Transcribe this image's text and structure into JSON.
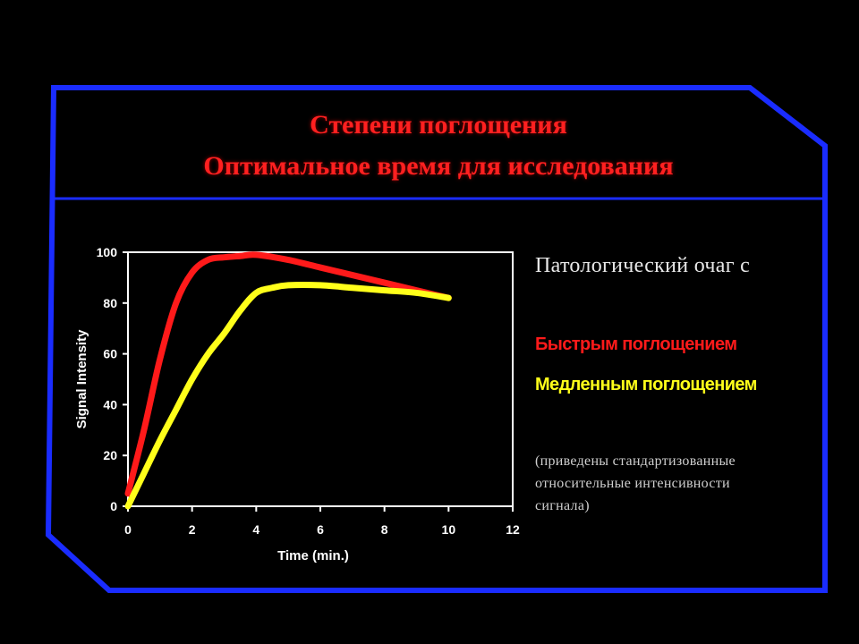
{
  "slide": {
    "title_line1": "Степени поглощения",
    "title_line2": "Оптимальное время для исследования",
    "title_color": "#ff2020",
    "frame_color": "#1a2cff"
  },
  "legend": {
    "heading": "Патологический очаг с",
    "fast_label": "Быстрым поглощением",
    "fast_color": "#ff1a1a",
    "slow_label": "Медленным поглощением",
    "slow_color": "#ffff1a"
  },
  "note": {
    "line1": "(приведены стандартизованные",
    "line2": "относительные интенсивности",
    "line3": "сигнала)"
  },
  "chart_data": {
    "type": "line",
    "xlabel": "Time (min.)",
    "ylabel": "Signal Intensity",
    "xlim": [
      0,
      12
    ],
    "ylim": [
      0,
      100
    ],
    "x_ticks": [
      0,
      2,
      4,
      6,
      8,
      10,
      12
    ],
    "y_ticks": [
      0,
      20,
      40,
      60,
      80,
      100
    ],
    "grid": false,
    "series": [
      {
        "color": "#ff1a1a",
        "x": [
          0,
          0.5,
          1,
          1.5,
          2,
          2.5,
          3,
          3.5,
          4,
          5,
          6,
          7,
          8,
          9,
          10
        ],
        "y": [
          5,
          30,
          58,
          80,
          92,
          97,
          98,
          98.5,
          99,
          97,
          94,
          91,
          88,
          85,
          82
        ]
      },
      {
        "color": "#ffff1a",
        "x": [
          0,
          0.5,
          1,
          1.5,
          2,
          2.5,
          3,
          3.5,
          4,
          4.5,
          5,
          6,
          7,
          8,
          9,
          10
        ],
        "y": [
          0,
          13,
          26,
          38,
          50,
          60,
          68,
          77,
          84,
          86,
          87,
          87,
          86,
          85,
          84,
          82
        ]
      }
    ]
  }
}
